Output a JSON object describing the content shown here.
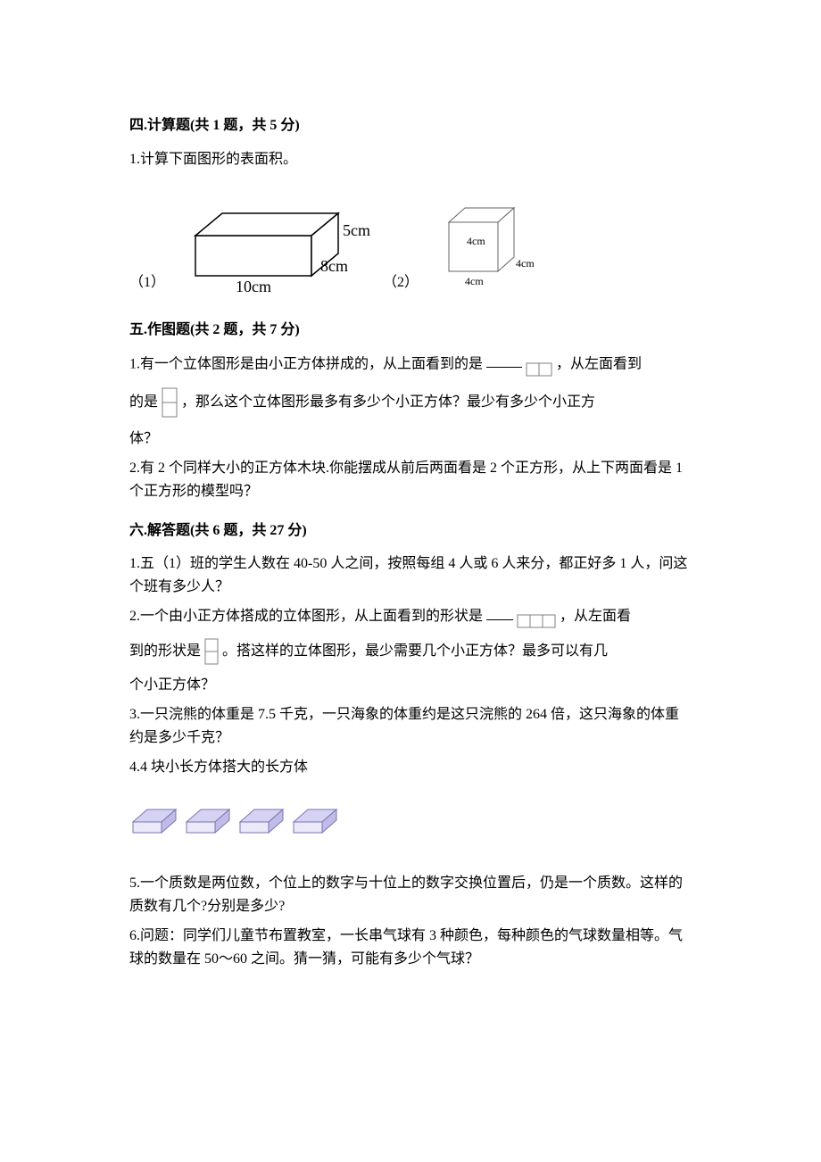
{
  "section4": {
    "title": "四.计算题(共 1 题，共 5 分)",
    "q1_intro": "1.计算下面图形的表面积。",
    "fig1_label": "（1）",
    "fig2_label": "（2）",
    "cuboid": {
      "w_label": "10cm",
      "d_label": "8cm",
      "h_label": "5cm",
      "stroke": "#000000",
      "fill": "#ffffff"
    },
    "cube": {
      "a": "4cm",
      "b": "4cm",
      "c": "4cm",
      "stroke": "#666666",
      "fill": "#ffffff"
    }
  },
  "section5": {
    "title": "五.作图题(共 2 题，共 7 分)",
    "q1_a": "1.有一个立体图形是由小正方体拼成的，从上面看到的是",
    "q1_b": "，从左面看到",
    "q1_c": "的是",
    "q1_d": "，那么这个立体图形最多有多少个小正方体？最少有多少个小正方",
    "q1_e": "体？",
    "q2": "2.有 2 个同样大小的正方体木块.你能摆成从前后两面看是 2 个正方形，从上下两面看是 1 个正方形的模型吗？",
    "top_view": {
      "cols": 2,
      "rows": 1,
      "cell": 14,
      "stroke": "#808080"
    },
    "left_view": {
      "cols": 1,
      "rows": 2,
      "cell": 16,
      "stroke": "#808080"
    }
  },
  "section6": {
    "title": "六.解答题(共 6 题，共 27 分)",
    "q1": "1.五（1）班的学生人数在 40-50 人之间，按照每组 4 人或 6 人来分，都正好多 1 人，问这个班有多少人？",
    "q2_a": "2.一个由小正方体搭成的立体图形，从上面看到的形状是",
    "q2_b": "，从左面看",
    "q2_c": "到的形状是",
    "q2_d": "。搭这样的立体图形，最少需要几个小正方体？最多可以有几",
    "q2_e": "个小正方体？",
    "q3": "3.一只浣熊的体重是 7.5 千克，一只海象的体重约是这只浣熊的 264 倍，这只海象的体重约是多少千克？",
    "q4": "4.4 块小长方体搭大的长方体",
    "q5": "5.一个质数是两位数，个位上的数字与十位上的数字交换位置后，仍是一个质数。这样的质数有几个?分别是多少?",
    "q6": "6.问题：同学们儿童节布置教室，一长串气球有 3 种颜色，每种颜色的气球数量相等。气球的数量在 50～60 之间。猜一猜，可能有多少个气球？",
    "top_view2": {
      "cols": 3,
      "rows": 1,
      "cell": 14,
      "stroke": "#808080"
    },
    "left_view2": {
      "cols": 1,
      "rows": 2,
      "cell": 14,
      "stroke": "#808080"
    },
    "blocks": {
      "count": 4,
      "top_fill": "#d6d2f4",
      "side_fill": "#c0bce8",
      "front_fill": "#ece9fb",
      "stroke": "#7a75b0"
    }
  }
}
